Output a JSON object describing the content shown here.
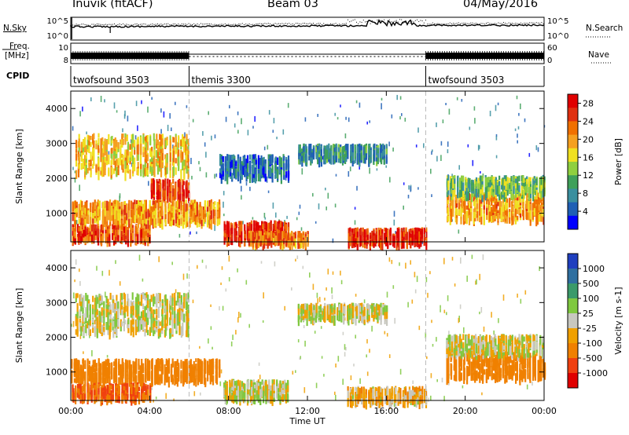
{
  "title": {
    "station": "Inuvik (fitACF)",
    "beam": "Beam 03",
    "date": "04/May/2016"
  },
  "nsky": {
    "left_label": "N.Sky",
    "right_label": "N.Search",
    "tick_top": "10^5",
    "tick_bottom": "10^0"
  },
  "freq": {
    "label_line1": "Freq.",
    "label_line2": "[MHz]",
    "ticks_left": [
      "10",
      "8"
    ],
    "ticks_right": [
      "60",
      "0"
    ],
    "right_label": "Nave"
  },
  "cpid": {
    "label": "CPID",
    "modes": [
      {
        "name": "twofsound 3503",
        "start_hour": 0,
        "end_hour": 6
      },
      {
        "name": "themis 3300",
        "start_hour": 6,
        "end_hour": 18
      },
      {
        "name": "twofsound 3503",
        "start_hour": 18,
        "end_hour": 24
      }
    ]
  },
  "colors": {
    "power_scale": [
      "#0000ff",
      "#1f5fb5",
      "#3a8f9f",
      "#3fa05a",
      "#8fcf3f",
      "#f0e020",
      "#f5a020",
      "#f07000",
      "#e03010",
      "#e00000"
    ],
    "velocity_scale": [
      "#1f3fbf",
      "#2f6fa0",
      "#3a9a6a",
      "#7fc83f",
      "#c8c8c0",
      "#f0a000",
      "#f08000",
      "#f04010",
      "#e00000"
    ]
  },
  "chart_data": [
    {
      "type": "heatmap",
      "title": "Power",
      "xlabel": "",
      "ylabel": "Slant Range [km]",
      "x_ticks": [
        "00:00",
        "04:00",
        "08:00",
        "12:00",
        "16:00",
        "20:00",
        "00:00"
      ],
      "x_range_hours": [
        0,
        24
      ],
      "y_ticks": [
        1000,
        2000,
        3000,
        4000
      ],
      "ylim": [
        180,
        4500
      ],
      "colorbar": {
        "label": "Power [dB]",
        "ticks": [
          4,
          8,
          12,
          16,
          20,
          24,
          28
        ],
        "range": [
          0,
          30
        ]
      },
      "regions": [
        {
          "t0": 0.2,
          "t1": 6.0,
          "r0": 2200,
          "r1": 3300,
          "value": 18
        },
        {
          "t0": 4.0,
          "t1": 6.0,
          "r0": 1500,
          "r1": 2000,
          "value": 26
        },
        {
          "t0": 0.0,
          "t1": 7.5,
          "r0": 800,
          "r1": 1400,
          "value": 20
        },
        {
          "t0": 0.0,
          "t1": 4.0,
          "r0": 300,
          "r1": 700,
          "value": 24
        },
        {
          "t0": 7.7,
          "t1": 11.0,
          "r0": 300,
          "r1": 800,
          "value": 26
        },
        {
          "t0": 7.5,
          "t1": 11.0,
          "r0": 2100,
          "r1": 2700,
          "value": 6
        },
        {
          "t0": 11.5,
          "t1": 16.0,
          "r0": 2600,
          "r1": 3000,
          "value": 8
        },
        {
          "t0": 9.0,
          "t1": 12.0,
          "r0": 200,
          "r1": 500,
          "value": 22
        },
        {
          "t0": 14.0,
          "t1": 18.0,
          "r0": 200,
          "r1": 600,
          "value": 26
        },
        {
          "t0": 19.0,
          "t1": 24.0,
          "r0": 900,
          "r1": 1600,
          "value": 20
        },
        {
          "t0": 19.0,
          "t1": 24.0,
          "r0": 1600,
          "r1": 2100,
          "value": 12
        }
      ]
    },
    {
      "type": "heatmap",
      "title": "Velocity",
      "xlabel": "Time UT",
      "ylabel": "Slant Range [km]",
      "x_ticks": [
        "00:00",
        "04:00",
        "08:00",
        "12:00",
        "16:00",
        "20:00",
        "00:00"
      ],
      "x_range_hours": [
        0,
        24
      ],
      "y_ticks": [
        1000,
        2000,
        3000,
        4000
      ],
      "ylim": [
        180,
        4500
      ],
      "colorbar": {
        "label": "Velocity [m s-1]",
        "ticks": [
          1000,
          500,
          100,
          25,
          -25,
          -100,
          -500,
          -1000
        ]
      },
      "regions": [
        {
          "t0": 0.2,
          "t1": 6.0,
          "r0": 2200,
          "r1": 3300,
          "value": 0
        },
        {
          "t0": 0.0,
          "t1": 7.5,
          "r0": 800,
          "r1": 1400,
          "value": -300
        },
        {
          "t0": 0.0,
          "t1": 4.0,
          "r0": 300,
          "r1": 700,
          "value": -500
        },
        {
          "t0": 7.7,
          "t1": 11.0,
          "r0": 300,
          "r1": 800,
          "value": 0
        },
        {
          "t0": 11.5,
          "t1": 16.0,
          "r0": 2600,
          "r1": 3000,
          "value": 0
        },
        {
          "t0": 14.0,
          "t1": 18.0,
          "r0": 200,
          "r1": 600,
          "value": -50
        },
        {
          "t0": 19.0,
          "t1": 24.0,
          "r0": 900,
          "r1": 1600,
          "value": -300
        },
        {
          "t0": 19.0,
          "t1": 24.0,
          "r0": 1600,
          "r1": 2100,
          "value": 0
        }
      ]
    }
  ]
}
